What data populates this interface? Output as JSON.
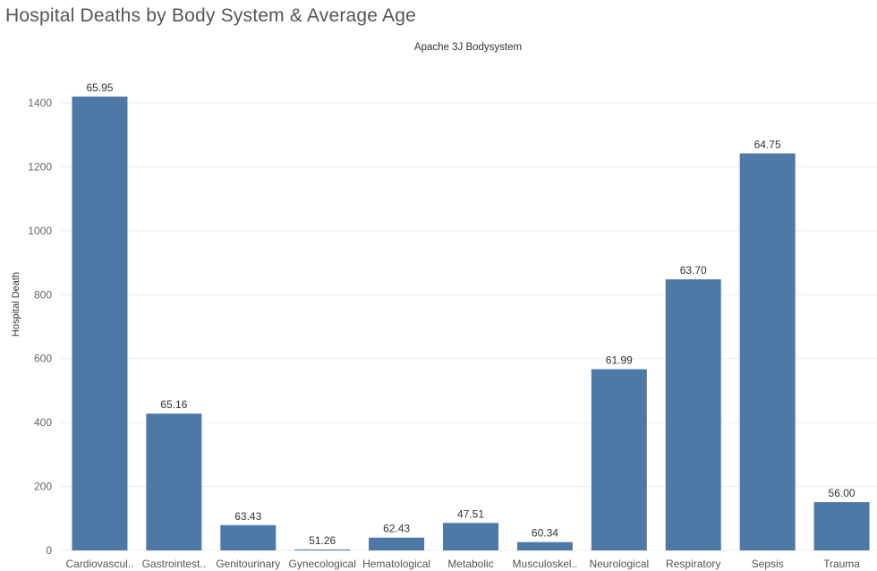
{
  "title": "Hospital Deaths by Body System & Average Age",
  "column_header": "Apache 3J Bodysystem",
  "chart_data": {
    "type": "bar",
    "title": "Hospital Deaths by Body System & Average Age",
    "xlabel": "Apache 3J Bodysystem",
    "ylabel": "Hospital Death",
    "ylim": [
      0,
      1400
    ],
    "yticks": [
      0,
      200,
      400,
      600,
      800,
      1000,
      1200,
      1400
    ],
    "grid": true,
    "color": "#4e79a7",
    "categories": [
      "Cardiovascul..",
      "Gastrointest..",
      "Genitourinary",
      "Gynecological",
      "Hematological",
      "Metabolic",
      "Musculoskel..",
      "Neurological",
      "Respiratory",
      "Sepsis",
      "Trauma"
    ],
    "values": [
      1420,
      428,
      79,
      3,
      40,
      86,
      26,
      567,
      848,
      1242,
      151
    ],
    "data_labels": [
      "65.95",
      "65.16",
      "63.43",
      "51.26",
      "62.43",
      "47.51",
      "60.34",
      "61.99",
      "63.70",
      "64.75",
      "56.00"
    ]
  }
}
